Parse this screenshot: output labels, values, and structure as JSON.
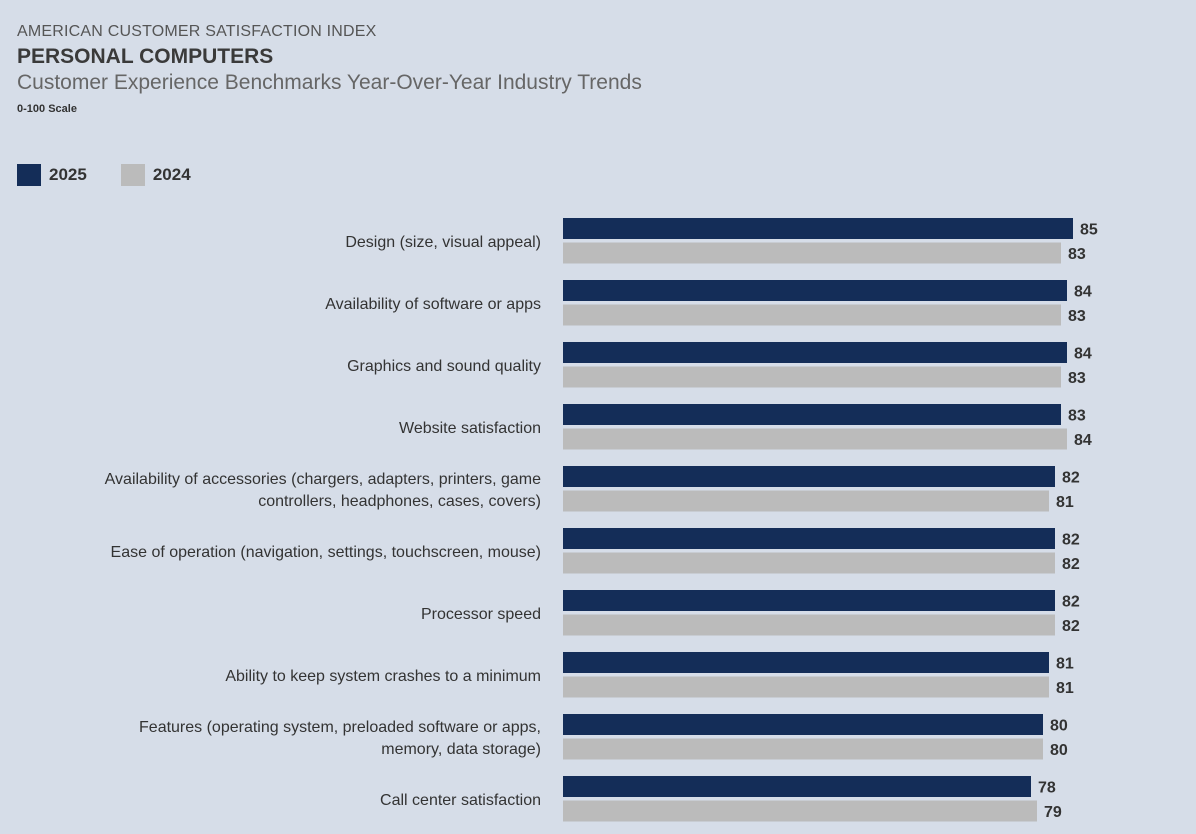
{
  "header": {
    "supertitle": "AMERICAN CUSTOMER SATISFACTION INDEX",
    "title": "PERSONAL COMPUTERS",
    "subtitle": "Customer Experience Benchmarks Year-Over-Year Industry Trends",
    "scale_note": "0-100 Scale"
  },
  "colors": {
    "background": "#d6dde8",
    "series_2025": "#142d58",
    "series_2024": "#bbbbbb"
  },
  "chart_data": {
    "type": "bar",
    "orientation": "horizontal",
    "title": "PERSONAL COMPUTERS",
    "subtitle": "Customer Experience Benchmarks Year-Over-Year Industry Trends",
    "note": "0-100 Scale",
    "legend_position": "top-left",
    "grid": false,
    "xlim": [
      0,
      100
    ],
    "categories": [
      [
        "Design (size, visual appeal)"
      ],
      [
        "Availability of software or apps"
      ],
      [
        "Graphics and sound quality"
      ],
      [
        "Website satisfaction"
      ],
      [
        "Availability of accessories (chargers, adapters, printers, game",
        "controllers, headphones, cases, covers)"
      ],
      [
        "Ease of operation (navigation, settings, touchscreen, mouse)"
      ],
      [
        "Processor speed"
      ],
      [
        "Ability to keep system crashes to a minimum"
      ],
      [
        "Features (operating system, preloaded software or apps,",
        "memory, data storage)"
      ],
      [
        "Call center satisfaction"
      ]
    ],
    "series": [
      {
        "name": "2025",
        "color": "#142d58",
        "values": [
          85,
          84,
          84,
          83,
          82,
          82,
          82,
          81,
          80,
          78
        ]
      },
      {
        "name": "2024",
        "color": "#bbbbbb",
        "values": [
          83,
          83,
          83,
          84,
          81,
          82,
          82,
          81,
          80,
          79
        ]
      }
    ]
  }
}
